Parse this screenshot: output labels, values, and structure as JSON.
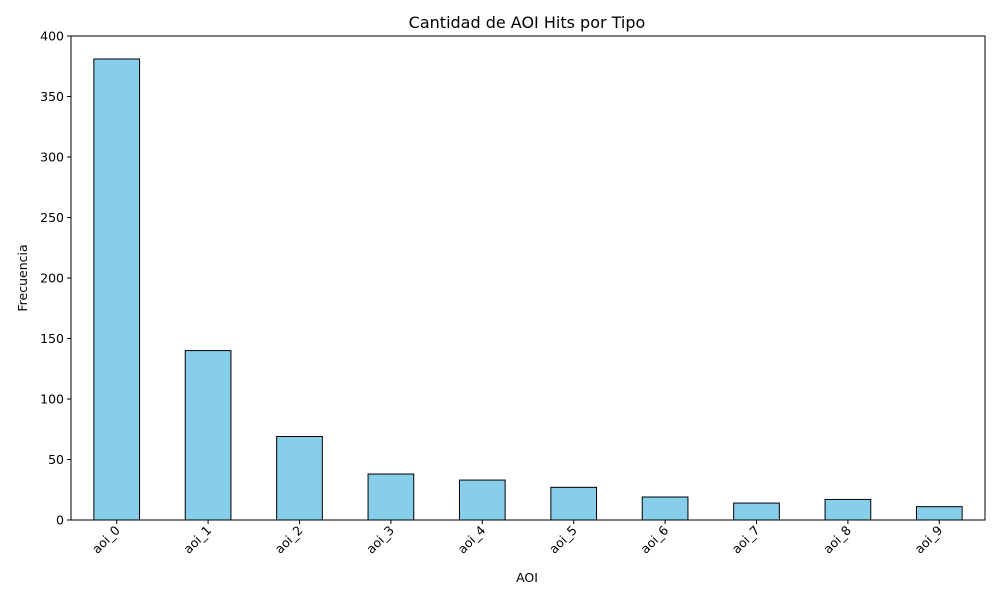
{
  "chart_data": {
    "type": "bar",
    "title": "Cantidad de AOI Hits por Tipo",
    "xlabel": "AOI",
    "ylabel": "Frecuencia",
    "categories": [
      "aoi_0",
      "aoi_1",
      "aoi_2",
      "aoi_3",
      "aoi_4",
      "aoi_5",
      "aoi_6",
      "aoi_7",
      "aoi_8",
      "aoi_9"
    ],
    "values": [
      381,
      140,
      69,
      38,
      33,
      27,
      19,
      14,
      17,
      11
    ],
    "ylim": [
      0,
      400
    ],
    "yticks": [
      0,
      50,
      100,
      150,
      200,
      250,
      300,
      350,
      400
    ],
    "grid": false,
    "legend": "none",
    "bar_color": "#87CEEB",
    "bar_edge_color": "#000000",
    "x_tick_rotation": 45
  }
}
